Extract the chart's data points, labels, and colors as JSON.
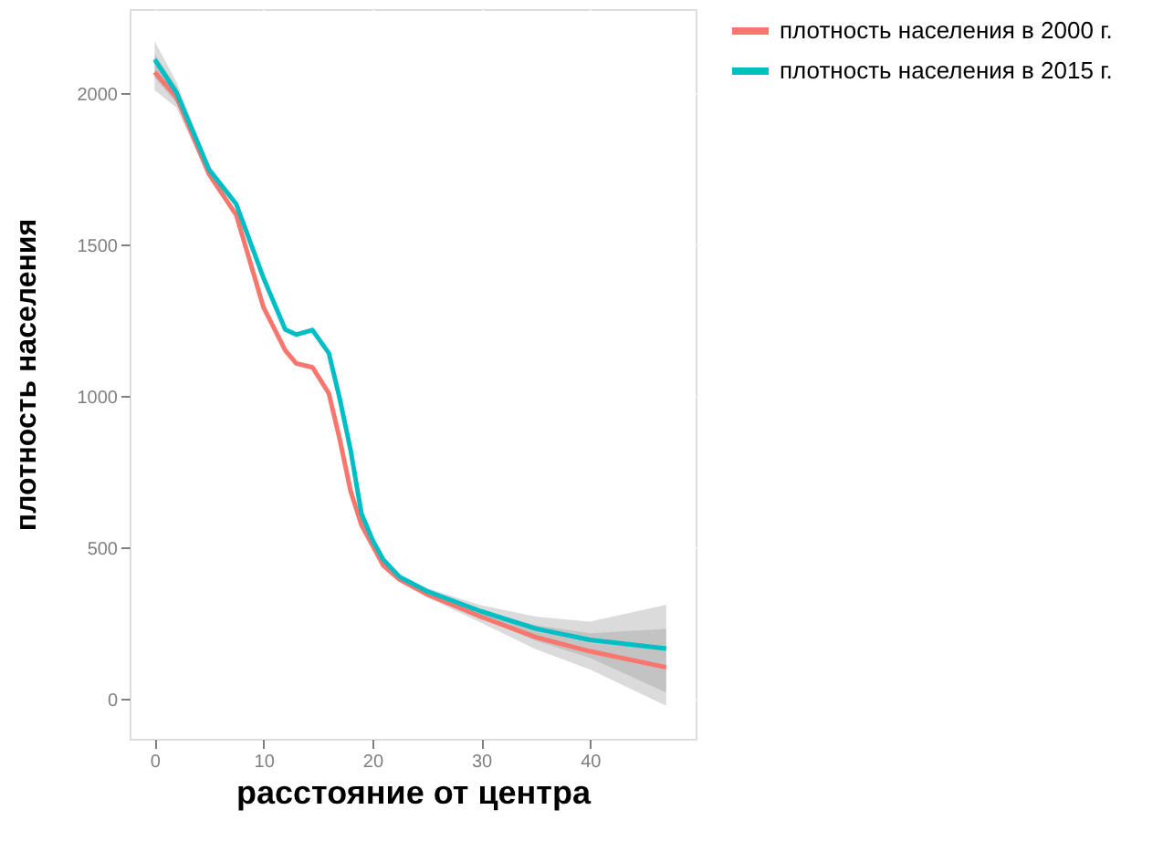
{
  "chart_data": {
    "type": "line",
    "xlabel": "расстояние от центра",
    "ylabel": "плотность населения",
    "x": [
      0,
      2,
      5,
      7.5,
      10,
      12,
      13,
      14.5,
      16,
      17,
      18,
      19,
      20,
      21,
      22.5,
      25,
      30,
      35,
      40,
      47
    ],
    "series": [
      {
        "name": "плотность населения в 2000 г.",
        "color": "#f8766d",
        "values": [
          2072,
          1990,
          1735,
          1600,
          1295,
          1153,
          1110,
          1097,
          1011,
          860,
          689,
          576,
          510,
          443,
          396,
          348,
          273,
          206,
          159,
          106
        ],
        "lower": [
          2012,
          1955,
          1720,
          1592,
          1287,
          1145,
          1102,
          1089,
          1003,
          852,
          681,
          568,
          502,
          435,
          388,
          338,
          253,
          166,
          99,
          -21
        ],
        "upper": [
          2132,
          2025,
          1750,
          1608,
          1303,
          1161,
          1118,
          1105,
          1019,
          868,
          697,
          584,
          518,
          451,
          404,
          358,
          293,
          246,
          219,
          233
        ]
      },
      {
        "name": "плотность населения в 2015 г.",
        "color": "#00bfc4",
        "values": [
          2114,
          2005,
          1750,
          1636,
          1392,
          1222,
          1205,
          1220,
          1144,
          994,
          824,
          614,
          528,
          462,
          405,
          358,
          291,
          234,
          197,
          168
        ],
        "lower": [
          2054,
          1970,
          1735,
          1628,
          1384,
          1214,
          1197,
          1212,
          1136,
          986,
          816,
          606,
          520,
          454,
          397,
          348,
          271,
          194,
          137,
          23
        ],
        "upper": [
          2174,
          2040,
          1765,
          1644,
          1400,
          1230,
          1213,
          1228,
          1152,
          1002,
          832,
          622,
          536,
          470,
          413,
          368,
          311,
          274,
          257,
          313
        ]
      }
    ],
    "xlim": [
      -2.3,
      49.7
    ],
    "xticks": [
      0,
      10,
      20,
      30,
      40
    ],
    "ylim": [
      -130,
      2280
    ],
    "yticks": [
      0,
      500,
      1000,
      1500,
      2000
    ],
    "grid": true,
    "legend": "right",
    "marker": "none",
    "line_style": "solid"
  }
}
